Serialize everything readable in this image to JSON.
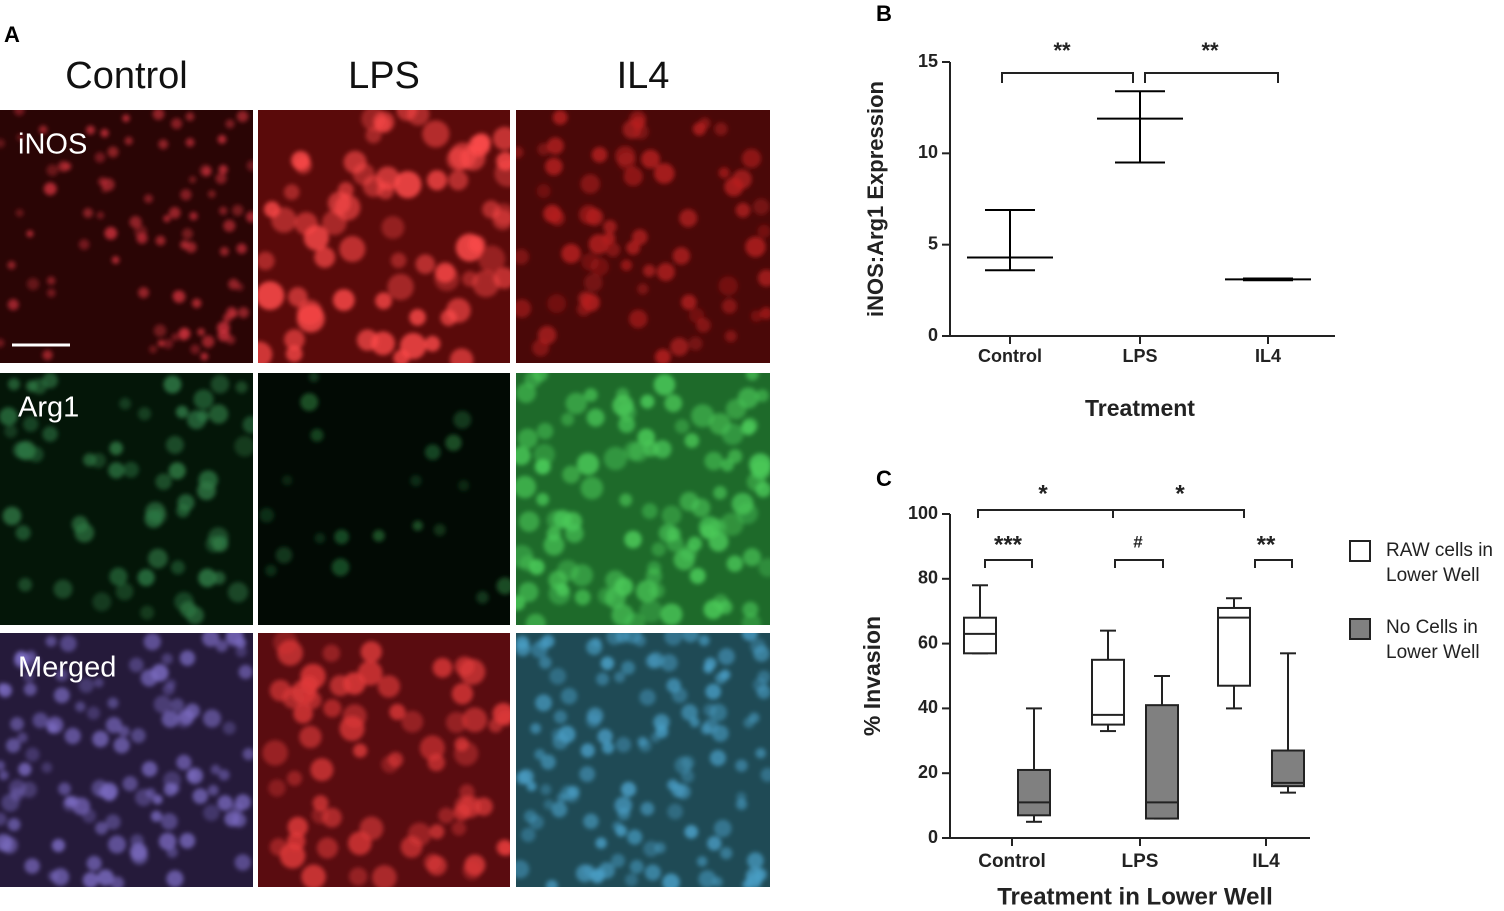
{
  "image_panel": {
    "label": "A",
    "columns": [
      "Control",
      "LPS",
      "IL4"
    ],
    "rows": [
      "iNOS",
      "Arg1",
      "Merged"
    ]
  },
  "chart_data": [
    {
      "type": "errorbar",
      "panel_label": "B",
      "x_label": "Treatment",
      "y_label": "iNOS:Arg1 Expression",
      "categories": [
        "Control",
        "LPS",
        "IL4"
      ],
      "values": [
        4.3,
        11.9,
        3.1
      ],
      "lower": [
        3.6,
        9.5,
        3.05
      ],
      "upper": [
        6.9,
        13.4,
        3.15
      ],
      "color": "#000000",
      "ylim": [
        0,
        15
      ],
      "yticks": [
        0,
        5,
        10,
        15
      ],
      "annotations": [
        "**",
        "**"
      ]
    },
    {
      "type": "box",
      "panel_label": "C",
      "x_label": "Treatment in Lower Well",
      "y_label": "% Invasion",
      "categories": [
        "Control",
        "LPS",
        "IL4"
      ],
      "series": [
        {
          "name": "RAW cells in Lower Well",
          "color": "#ffffff",
          "min": [
            57,
            33,
            40
          ],
          "q1": [
            57,
            35,
            47
          ],
          "median": [
            63,
            38,
            68
          ],
          "q3": [
            68,
            55,
            71
          ],
          "max": [
            78,
            64,
            74
          ]
        },
        {
          "name": "No Cells in Lower Well",
          "color": "#808080",
          "min": [
            5,
            6,
            14
          ],
          "q1": [
            7,
            6,
            16
          ],
          "median": [
            11,
            11,
            17
          ],
          "q3": [
            21,
            41,
            27
          ],
          "max": [
            40,
            50,
            57
          ]
        }
      ],
      "ylim": [
        0,
        100
      ],
      "yticks": [
        0,
        20,
        40,
        60,
        80,
        100
      ],
      "annotations": [
        "*",
        "*",
        "***",
        "#",
        "**"
      ]
    }
  ]
}
